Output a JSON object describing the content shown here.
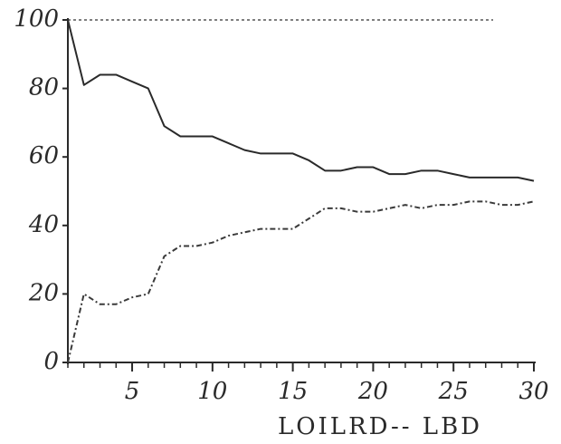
{
  "chart_data": {
    "type": "line",
    "x_label": "LOILRD-- LBD",
    "x": [
      1,
      2,
      3,
      4,
      5,
      6,
      7,
      8,
      9,
      10,
      11,
      12,
      13,
      14,
      15,
      16,
      17,
      18,
      19,
      20,
      21,
      22,
      23,
      24,
      25,
      26,
      27,
      28,
      29,
      30
    ],
    "series": [
      {
        "color": "#2a2a2a",
        "style": "solid",
        "values": [
          100,
          81,
          84,
          84,
          82,
          80,
          69,
          66,
          66,
          66,
          64,
          62,
          61,
          61,
          61,
          59,
          56,
          56,
          57,
          57,
          55,
          55,
          56,
          56,
          55,
          54,
          54,
          54,
          54,
          53
        ]
      },
      {
        "color": "#3a3a3a",
        "style": "dashed",
        "values": [
          0,
          20,
          17,
          17,
          19,
          20,
          31,
          34,
          34,
          35,
          37,
          38,
          39,
          39,
          39,
          42,
          45,
          45,
          44,
          44,
          45,
          46,
          45,
          46,
          46,
          47,
          47,
          46,
          46,
          47
        ]
      }
    ],
    "xlim": [
      1,
      30
    ],
    "ylim": [
      0,
      100
    ],
    "xticks": [
      5,
      10,
      15,
      20,
      25,
      30
    ],
    "yticks": [
      0,
      20,
      40,
      60,
      80,
      100
    ]
  }
}
